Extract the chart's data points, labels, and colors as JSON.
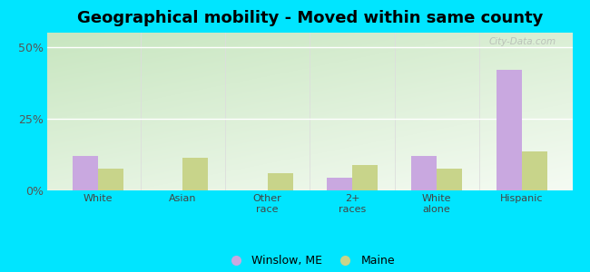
{
  "title": "Geographical mobility - Moved within same county",
  "categories": [
    "White",
    "Asian",
    "Other\nrace",
    "2+\nraces",
    "White\nalone",
    "Hispanic"
  ],
  "winslow_values": [
    12.0,
    0.0,
    0.0,
    4.5,
    12.0,
    42.0
  ],
  "maine_values": [
    7.5,
    11.5,
    6.0,
    9.0,
    7.5,
    13.5
  ],
  "winslow_color": "#c9a8e0",
  "maine_color": "#c8d48a",
  "outer_bg": "#00e5ff",
  "plot_bg_topleft": "#c8e6c0",
  "plot_bg_bottomright": "#f0faf0",
  "ylim": [
    0,
    55
  ],
  "yticks": [
    0,
    25,
    50
  ],
  "ytick_labels": [
    "0%",
    "25%",
    "50%"
  ],
  "legend_winslow": "Winslow, ME",
  "legend_maine": "Maine",
  "bar_width": 0.3,
  "title_fontsize": 13,
  "watermark": "City-Data.com"
}
